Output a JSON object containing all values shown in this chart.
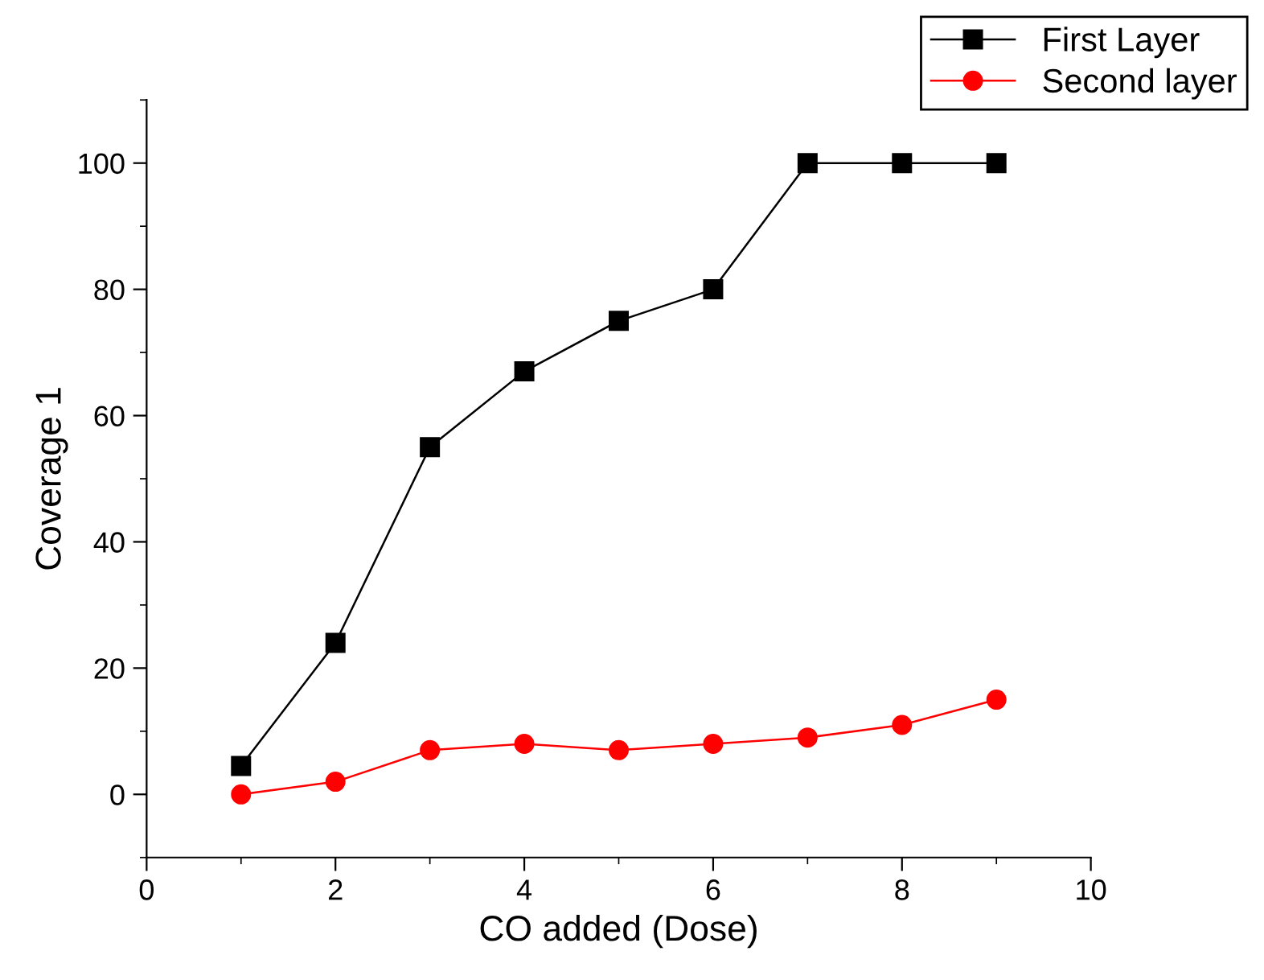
{
  "chart_data": {
    "type": "line",
    "xlabel": "CO added (Dose)",
    "ylabel": "Coverage 1",
    "x": [
      1,
      2,
      3,
      4,
      5,
      6,
      7,
      8,
      9
    ],
    "series": [
      {
        "name": "First Layer",
        "color": "#000000",
        "marker": "square",
        "values": [
          4.5,
          24,
          55,
          67,
          75,
          80,
          100,
          100,
          100
        ]
      },
      {
        "name": "Second layer",
        "color": "#ff0000",
        "marker": "circle",
        "values": [
          0,
          2,
          7,
          8,
          7,
          8,
          9,
          11,
          15
        ]
      }
    ],
    "xlim": [
      0,
      10
    ],
    "xticks": [
      0,
      {
        "value": 1,
        "label": null
      },
      2,
      {
        "value": 3,
        "label": null
      },
      4,
      {
        "value": 5,
        "label": null
      },
      6,
      {
        "value": 7,
        "label": null
      },
      8,
      {
        "value": 9,
        "label": null
      },
      10
    ],
    "ylim": [
      -10,
      110
    ],
    "yticks": [
      {
        "value": -10,
        "label": null
      },
      0,
      {
        "value": 10,
        "label": null
      },
      20,
      {
        "value": 30,
        "label": null
      },
      40,
      {
        "value": 50,
        "label": null
      },
      60,
      {
        "value": 70,
        "label": null
      },
      80,
      {
        "value": 90,
        "label": null
      },
      100,
      {
        "value": 110,
        "label": null
      }
    ],
    "grid": false,
    "legend": "top right",
    "line_style": "solid"
  }
}
